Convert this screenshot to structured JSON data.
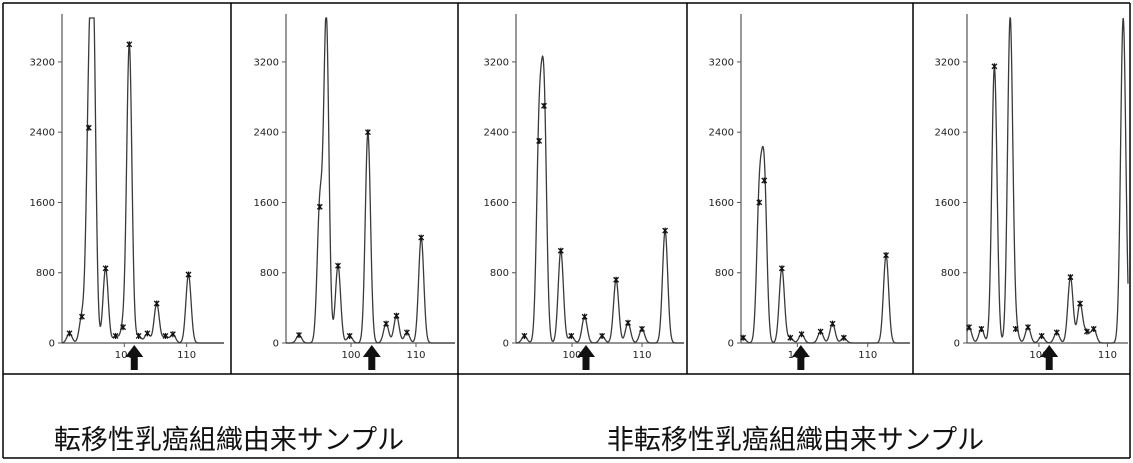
{
  "groups": [
    {
      "label": "転移性乳癌組織由来サンプル"
    },
    {
      "label": "非転移性乳癌組織由来サンプル"
    }
  ],
  "colors": {
    "trace": "#3a3a3a",
    "marker": "#111111",
    "arrow": "#111111",
    "frame": "#000000"
  },
  "chart_data": [
    {
      "type": "line",
      "group": 0,
      "y_ticks": [
        0,
        800,
        1600,
        2400,
        3200
      ],
      "x_ticks": [
        100,
        110
      ],
      "xlim": [
        90,
        116
      ],
      "ylim": [
        0,
        3700
      ],
      "arrow_x": 101.6,
      "peaks": [
        {
          "x": 91.2,
          "y": 110
        },
        {
          "x": 93.2,
          "y": 300
        },
        {
          "x": 94.3,
          "y": 2450
        },
        {
          "x": 95,
          "y": 3700
        },
        {
          "x": 97,
          "y": 850
        },
        {
          "x": 98.6,
          "y": 80
        },
        {
          "x": 99.8,
          "y": 180
        },
        {
          "x": 100.8,
          "y": 3400
        },
        {
          "x": 102.3,
          "y": 80
        },
        {
          "x": 103.7,
          "y": 110
        },
        {
          "x": 105.2,
          "y": 450
        },
        {
          "x": 106.6,
          "y": 80
        },
        {
          "x": 107.8,
          "y": 100
        },
        {
          "x": 110.3,
          "y": 780
        }
      ]
    },
    {
      "type": "line",
      "group": 0,
      "y_ticks": [
        0,
        800,
        1600,
        2400,
        3200
      ],
      "x_ticks": [
        100,
        110
      ],
      "xlim": [
        90,
        116
      ],
      "ylim": [
        0,
        3700
      ],
      "arrow_x": 103.2,
      "peaks": [
        {
          "x": 92,
          "y": 90
        },
        {
          "x": 95.2,
          "y": 1550
        },
        {
          "x": 96.2,
          "y": 3700
        },
        {
          "x": 98,
          "y": 880
        },
        {
          "x": 99.8,
          "y": 80
        },
        {
          "x": 102.6,
          "y": 2400
        },
        {
          "x": 105.4,
          "y": 220
        },
        {
          "x": 107,
          "y": 310
        },
        {
          "x": 108.6,
          "y": 120
        },
        {
          "x": 110.8,
          "y": 1200
        }
      ]
    },
    {
      "type": "line",
      "group": 1,
      "y_ticks": [
        0,
        800,
        1600,
        2400,
        3200
      ],
      "x_ticks": [
        100,
        110
      ],
      "xlim": [
        92,
        116
      ],
      "ylim": [
        0,
        3700
      ],
      "arrow_x": 102,
      "peaks": [
        {
          "x": 93.2,
          "y": 80
        },
        {
          "x": 95.3,
          "y": 2300
        },
        {
          "x": 96,
          "y": 2700
        },
        {
          "x": 98.4,
          "y": 1050
        },
        {
          "x": 99.9,
          "y": 80
        },
        {
          "x": 101.8,
          "y": 300
        },
        {
          "x": 104.3,
          "y": 80
        },
        {
          "x": 106.3,
          "y": 720
        },
        {
          "x": 108,
          "y": 230
        },
        {
          "x": 110,
          "y": 160
        },
        {
          "x": 113.3,
          "y": 1280
        }
      ]
    },
    {
      "type": "line",
      "group": 1,
      "y_ticks": [
        0,
        800,
        1600,
        2400,
        3200
      ],
      "x_ticks": [
        100,
        110
      ],
      "xlim": [
        92,
        116
      ],
      "ylim": [
        0,
        3700
      ],
      "arrow_x": 100.5,
      "peaks": [
        {
          "x": 92.3,
          "y": 60
        },
        {
          "x": 94.6,
          "y": 1600
        },
        {
          "x": 95.3,
          "y": 1850
        },
        {
          "x": 97.8,
          "y": 850
        },
        {
          "x": 99,
          "y": 60
        },
        {
          "x": 100.6,
          "y": 100
        },
        {
          "x": 103.3,
          "y": 130
        },
        {
          "x": 105,
          "y": 220
        },
        {
          "x": 106.6,
          "y": 60
        },
        {
          "x": 112.6,
          "y": 1000
        }
      ]
    },
    {
      "type": "line",
      "group": 1,
      "y_ticks": [
        0,
        800,
        1600,
        2400,
        3200
      ],
      "x_ticks": [
        100,
        110
      ],
      "xlim": [
        89.5,
        113
      ],
      "ylim": [
        0,
        3700
      ],
      "arrow_x": 101.5,
      "peaks": [
        {
          "x": 89.8,
          "y": 180
        },
        {
          "x": 91.6,
          "y": 160
        },
        {
          "x": 93.5,
          "y": 3150
        },
        {
          "x": 95.8,
          "y": 3700
        },
        {
          "x": 96.6,
          "y": 160
        },
        {
          "x": 98.4,
          "y": 180
        },
        {
          "x": 100.4,
          "y": 80
        },
        {
          "x": 102.6,
          "y": 120
        },
        {
          "x": 104.6,
          "y": 750
        },
        {
          "x": 106,
          "y": 450
        },
        {
          "x": 107,
          "y": 130
        },
        {
          "x": 108,
          "y": 160
        },
        {
          "x": 112.3,
          "y": 3700
        }
      ]
    }
  ]
}
